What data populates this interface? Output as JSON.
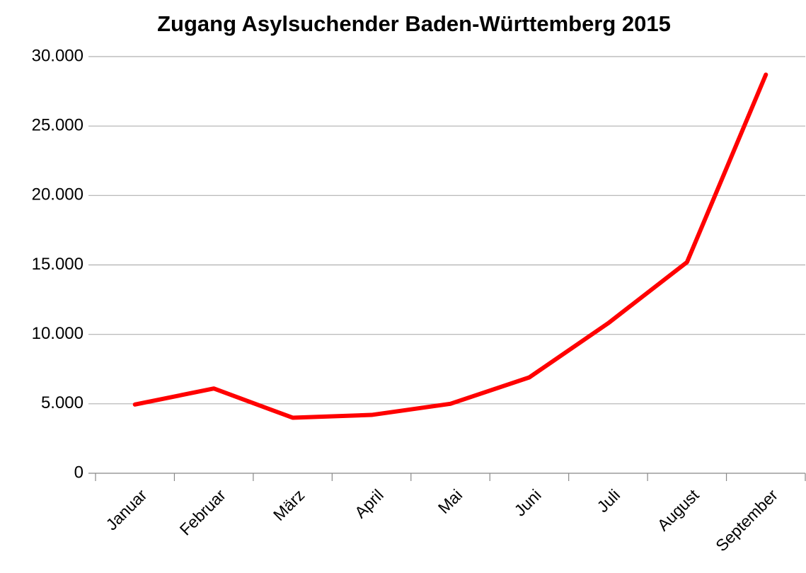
{
  "chart_data": {
    "type": "line",
    "title": "Zugang Asylsuchender Baden-Württemberg 2015",
    "categories": [
      "Januar",
      "Februar",
      "März",
      "April",
      "Mai",
      "Juni",
      "Juli",
      "August",
      "September"
    ],
    "series": [
      {
        "name": "Zugang",
        "color": "#ff0000",
        "values": [
          4950,
          6100,
          4000,
          4200,
          5000,
          6900,
          10800,
          15200,
          28700
        ]
      }
    ],
    "ylim": [
      0,
      30000
    ],
    "yticks": [
      0,
      {
        "value": 5000,
        "label": "5.000"
      },
      {
        "value": 10000,
        "label": "10.000"
      },
      {
        "value": 15000,
        "label": "15.000"
      },
      {
        "value": 20000,
        "label": "20.000"
      },
      {
        "value": 25000,
        "label": "25.000"
      },
      {
        "value": 30000,
        "label": "30.000"
      }
    ],
    "grid": true
  }
}
